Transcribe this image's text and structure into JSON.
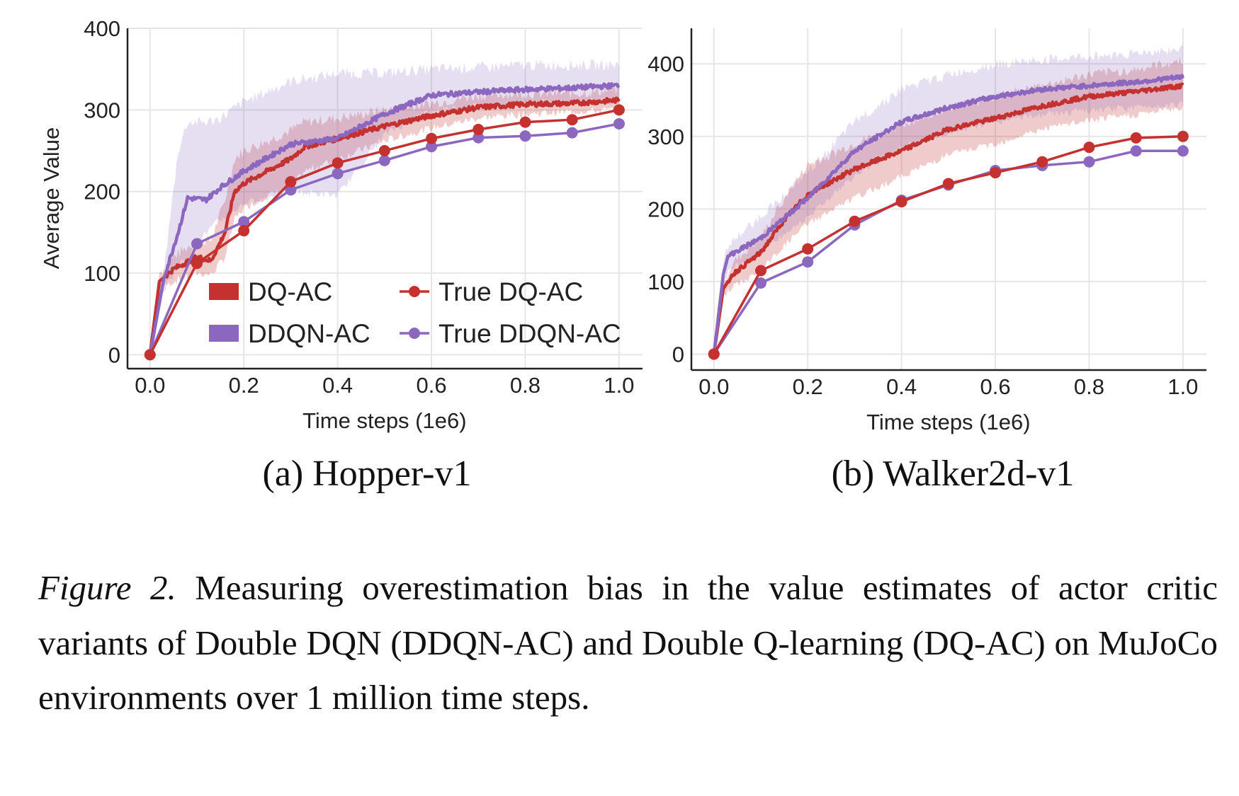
{
  "colors": {
    "dq": "#c4312e",
    "ddqn": "#8c67bf",
    "grid": "#e6e6e6",
    "axis": "#222222"
  },
  "legend": {
    "items": [
      {
        "label": "DQ-AC",
        "kind": "patch",
        "series": "dq"
      },
      {
        "label": "True DQ-AC",
        "kind": "marker-line",
        "series": "dq"
      },
      {
        "label": "DDQN-AC",
        "kind": "patch",
        "series": "ddqn"
      },
      {
        "label": "True DDQN-AC",
        "kind": "marker-line",
        "series": "ddqn"
      }
    ],
    "placement": "lower-right of panel (a)"
  },
  "chart_data": [
    {
      "type": "line",
      "subcaption": "(a) Hopper-v1",
      "xlabel": "Time steps (1e6)",
      "ylabel": "Average Value",
      "xlim": [
        -0.048,
        1.05
      ],
      "ylim": [
        -17,
        400
      ],
      "xticks": [
        "0.0",
        "0.2",
        "0.4",
        "0.6",
        "0.8",
        "1.0"
      ],
      "yticks": [
        "0",
        "100",
        "200",
        "300",
        "400"
      ],
      "grid": true,
      "series": [
        {
          "name": "DQ-AC",
          "color_key": "dq",
          "style": "mean-with-band",
          "x": [
            0,
            0.02,
            0.05,
            0.1,
            0.13,
            0.16,
            0.18,
            0.2,
            0.25,
            0.3,
            0.33,
            0.4,
            0.5,
            0.6,
            0.7,
            0.8,
            0.9,
            1.0
          ],
          "values": [
            0,
            90,
            105,
            120,
            115,
            150,
            200,
            210,
            225,
            240,
            255,
            265,
            280,
            293,
            303,
            307,
            308,
            312
          ],
          "band_lower": [
            0,
            80,
            90,
            100,
            98,
            120,
            165,
            180,
            195,
            205,
            225,
            240,
            262,
            278,
            290,
            295,
            298,
            300
          ],
          "band_upper": [
            0,
            100,
            120,
            140,
            140,
            190,
            240,
            250,
            262,
            275,
            285,
            290,
            300,
            308,
            318,
            320,
            320,
            325
          ]
        },
        {
          "name": "DDQN-AC",
          "color_key": "ddqn",
          "style": "mean-with-band",
          "x": [
            0,
            0.03,
            0.06,
            0.08,
            0.12,
            0.15,
            0.2,
            0.3,
            0.4,
            0.5,
            0.6,
            0.7,
            0.8,
            0.9,
            1.0
          ],
          "values": [
            0,
            95,
            150,
            192,
            190,
            205,
            225,
            258,
            265,
            295,
            318,
            322,
            325,
            327,
            330
          ],
          "band_lower": [
            0,
            80,
            110,
            120,
            150,
            165,
            185,
            200,
            195,
            270,
            300,
            305,
            308,
            310,
            312
          ],
          "band_upper": [
            0,
            105,
            250,
            285,
            285,
            290,
            310,
            335,
            345,
            345,
            350,
            352,
            355,
            355,
            355
          ]
        },
        {
          "name": "True DQ-AC",
          "color_key": "dq",
          "style": "marker-line",
          "x": [
            0,
            0.1,
            0.2,
            0.3,
            0.4,
            0.5,
            0.6,
            0.7,
            0.8,
            0.9,
            1.0
          ],
          "values": [
            0,
            112,
            152,
            212,
            235,
            250,
            265,
            276,
            285,
            288,
            300
          ]
        },
        {
          "name": "True DDQN-AC",
          "color_key": "ddqn",
          "style": "marker-line",
          "x": [
            0,
            0.1,
            0.2,
            0.3,
            0.4,
            0.5,
            0.6,
            0.7,
            0.8,
            0.9,
            1.0
          ],
          "values": [
            0,
            136,
            163,
            202,
            222,
            238,
            255,
            266,
            268,
            272,
            283
          ]
        }
      ]
    },
    {
      "type": "line",
      "subcaption": "(b) Walker2d-v1",
      "xlabel": "Time steps (1e6)",
      "ylabel": "",
      "xlim": [
        -0.048,
        1.05
      ],
      "ylim": [
        -22,
        449
      ],
      "xticks": [
        "0.0",
        "0.2",
        "0.4",
        "0.6",
        "0.8",
        "1.0"
      ],
      "yticks": [
        "0",
        "100",
        "200",
        "300",
        "400"
      ],
      "grid": true,
      "series": [
        {
          "name": "DQ-AC",
          "color_key": "dq",
          "style": "mean-with-band",
          "x": [
            0,
            0.02,
            0.04,
            0.1,
            0.15,
            0.2,
            0.3,
            0.4,
            0.5,
            0.6,
            0.7,
            0.8,
            0.9,
            1.0
          ],
          "values": [
            0,
            90,
            110,
            140,
            185,
            220,
            255,
            280,
            310,
            325,
            342,
            355,
            362,
            370
          ],
          "band_lower": [
            0,
            80,
            92,
            115,
            150,
            180,
            215,
            245,
            275,
            290,
            310,
            322,
            330,
            340
          ],
          "band_upper": [
            0,
            100,
            125,
            160,
            215,
            260,
            290,
            315,
            340,
            355,
            370,
            385,
            392,
            405
          ]
        },
        {
          "name": "DDQN-AC",
          "color_key": "ddqn",
          "style": "mean-with-band",
          "x": [
            0,
            0.02,
            0.03,
            0.1,
            0.2,
            0.3,
            0.4,
            0.5,
            0.6,
            0.7,
            0.8,
            0.9,
            1.0
          ],
          "values": [
            0,
            110,
            135,
            160,
            215,
            280,
            320,
            340,
            355,
            365,
            370,
            375,
            382
          ],
          "band_lower": [
            0,
            95,
            115,
            140,
            190,
            245,
            285,
            305,
            320,
            330,
            335,
            340,
            345
          ],
          "band_upper": [
            0,
            125,
            150,
            190,
            250,
            320,
            365,
            385,
            400,
            405,
            410,
            415,
            420
          ]
        },
        {
          "name": "True DQ-AC",
          "color_key": "dq",
          "style": "marker-line",
          "x": [
            0,
            0.1,
            0.2,
            0.3,
            0.4,
            0.5,
            0.6,
            0.7,
            0.8,
            0.9,
            1.0
          ],
          "values": [
            0,
            115,
            145,
            183,
            210,
            235,
            250,
            265,
            285,
            298,
            300
          ]
        },
        {
          "name": "True DDQN-AC",
          "color_key": "ddqn",
          "style": "marker-line",
          "x": [
            0,
            0.1,
            0.2,
            0.3,
            0.4,
            0.5,
            0.6,
            0.7,
            0.8,
            0.9,
            1.0
          ],
          "values": [
            0,
            98,
            127,
            178,
            212,
            233,
            253,
            260,
            265,
            280,
            280
          ]
        }
      ]
    }
  ],
  "caption": {
    "label": "Figure 2.",
    "text": " Measuring overestimation bias in the value estimates of actor critic variants of Double DQN (DDQN-AC) and Double Q-learning (DQ-AC) on MuJoCo environments over 1 million time steps."
  }
}
